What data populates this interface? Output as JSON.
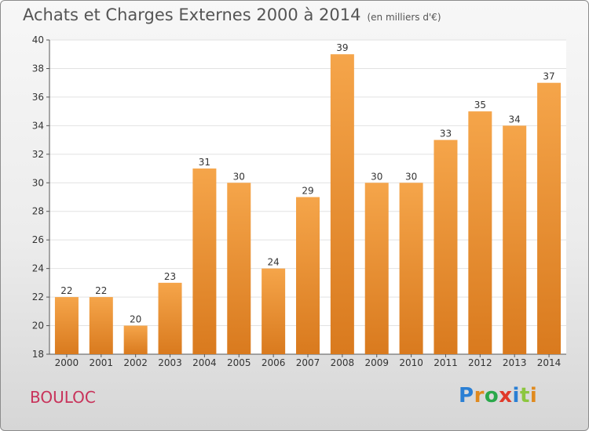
{
  "chart_data": {
    "type": "bar",
    "title": "Achats et Charges Externes 2000 à 2014",
    "subtitle": "(en milliers d'€)",
    "categories": [
      "2000",
      "2001",
      "2002",
      "2003",
      "2004",
      "2005",
      "2006",
      "2007",
      "2008",
      "2009",
      "2010",
      "2011",
      "2012",
      "2013",
      "2014"
    ],
    "values": [
      22,
      22,
      20,
      23,
      31,
      30,
      24,
      29,
      39,
      30,
      30,
      33,
      35,
      34,
      37
    ],
    "ylim": [
      18,
      40
    ],
    "yticks": [
      18,
      20,
      22,
      24,
      26,
      28,
      30,
      32,
      34,
      36,
      38,
      40
    ],
    "xlabel": "",
    "ylabel": "",
    "grid": true,
    "bar_color_top": "#f5a54a",
    "bar_color_bottom": "#d97a1e"
  },
  "footer": {
    "commune": "BOULOC",
    "logo": "Proxiti"
  },
  "colors": {
    "logo_letters": [
      "#2a7fd4",
      "#e08a1e",
      "#2aa84a",
      "#e03a2a",
      "#2a7fd4",
      "#8cc63f",
      "#e08a1e"
    ]
  }
}
